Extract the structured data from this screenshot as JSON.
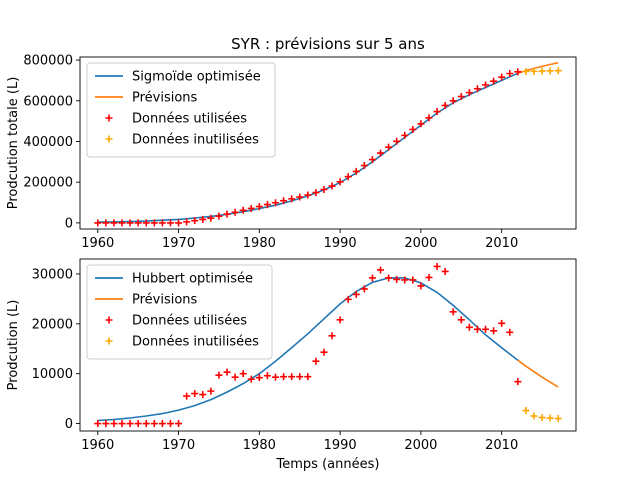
{
  "chart_data": [
    {
      "type": "line",
      "title": "SYR : prévisions sur 5 ans",
      "xlabel": "",
      "ylabel": "Prodcution totale (L)",
      "xlim": [
        1957.8,
        2019.2
      ],
      "ylim": [
        -30000,
        815000
      ],
      "xticks": [
        1960,
        1970,
        1980,
        1990,
        2000,
        2010
      ],
      "yticks": [
        0,
        200000,
        400000,
        600000,
        800000
      ],
      "legend_position": "upper-left",
      "grid": false,
      "series": [
        {
          "name": "Sigmoïde optimisée",
          "kind": "line",
          "color": "#1f77b4",
          "x": [
            1960,
            1962,
            1964,
            1966,
            1968,
            1970,
            1972,
            1974,
            1976,
            1978,
            1980,
            1982,
            1984,
            1986,
            1988,
            1990,
            1992,
            1994,
            1996,
            1998,
            2000,
            2002,
            2004,
            2006,
            2008,
            2010,
            2012
          ],
          "y": [
            4000,
            5000,
            7000,
            9000,
            13000,
            17000,
            24000,
            32000,
            42000,
            55000,
            70000,
            87000,
            108000,
            132000,
            162000,
            198000,
            245000,
            300000,
            360000,
            420000,
            480000,
            540000,
            590000,
            630000,
            665000,
            700000,
            735000
          ]
        },
        {
          "name": "Prévisions",
          "kind": "line",
          "color": "#ff7f0e",
          "x": [
            2012,
            2013,
            2014,
            2015,
            2016,
            2017
          ],
          "y": [
            735000,
            748000,
            759000,
            769000,
            778000,
            787000
          ]
        },
        {
          "name": "Données utilisées",
          "kind": "scatter",
          "marker": "plus",
          "color": "#ff0000",
          "x": [
            1960,
            1961,
            1962,
            1963,
            1964,
            1965,
            1966,
            1967,
            1968,
            1969,
            1970,
            1971,
            1972,
            1973,
            1974,
            1975,
            1976,
            1977,
            1978,
            1979,
            1980,
            1981,
            1982,
            1983,
            1984,
            1985,
            1986,
            1987,
            1988,
            1989,
            1990,
            1991,
            1992,
            1993,
            1994,
            1995,
            1996,
            1997,
            1998,
            1999,
            2000,
            2001,
            2002,
            2003,
            2004,
            2005,
            2006,
            2007,
            2008,
            2009,
            2010,
            2011,
            2012
          ],
          "y": [
            0,
            0,
            0,
            0,
            0,
            0,
            0,
            0,
            0,
            0,
            0,
            5000,
            11000,
            17000,
            23000,
            33000,
            43000,
            52000,
            62000,
            71000,
            80000,
            90000,
            99000,
            109000,
            118000,
            127000,
            137000,
            149000,
            164000,
            181000,
            202000,
            227000,
            253000,
            282000,
            311000,
            343000,
            372000,
            401000,
            430000,
            459000,
            487000,
            516000,
            547000,
            577000,
            600000,
            621000,
            640000,
            659000,
            678000,
            696000,
            716000,
            734000,
            742000
          ]
        },
        {
          "name": "Données inutilisées",
          "kind": "scatter",
          "marker": "plus",
          "color": "#ffa500",
          "x": [
            2013,
            2014,
            2015,
            2016,
            2017
          ],
          "y": [
            744000,
            745000,
            746000,
            747000,
            748000
          ]
        }
      ]
    },
    {
      "type": "line",
      "title": "",
      "xlabel": "Temps (années)",
      "ylabel": "Prodcution (L)",
      "xlim": [
        1957.8,
        2019.2
      ],
      "ylim": [
        -1500,
        33000
      ],
      "xticks": [
        1960,
        1970,
        1980,
        1990,
        2000,
        2010
      ],
      "yticks": [
        0,
        10000,
        20000,
        30000
      ],
      "legend_position": "upper-left",
      "grid": false,
      "series": [
        {
          "name": "Hubbert optimisée",
          "kind": "line",
          "color": "#1f77b4",
          "x": [
            1960,
            1962,
            1964,
            1966,
            1968,
            1970,
            1972,
            1974,
            1976,
            1978,
            1980,
            1982,
            1984,
            1986,
            1988,
            1990,
            1992,
            1994,
            1996,
            1998,
            2000,
            2002,
            2004,
            2006,
            2008,
            2010,
            2012
          ],
          "y": [
            600,
            800,
            1100,
            1500,
            2000,
            2700,
            3600,
            4800,
            6300,
            8000,
            10000,
            12500,
            15200,
            18000,
            21000,
            24000,
            26500,
            28300,
            29200,
            29200,
            28200,
            26300,
            23700,
            20800,
            17800,
            15200,
            12700
          ]
        },
        {
          "name": "Prévisions",
          "kind": "line",
          "color": "#ff7f0e",
          "x": [
            2012,
            2013,
            2014,
            2015,
            2016,
            2017
          ],
          "y": [
            12700,
            11500,
            10400,
            9300,
            8300,
            7300
          ]
        },
        {
          "name": "Données utilisées",
          "kind": "scatter",
          "marker": "plus",
          "color": "#ff0000",
          "x": [
            1960,
            1961,
            1962,
            1963,
            1964,
            1965,
            1966,
            1967,
            1968,
            1969,
            1970,
            1971,
            1972,
            1973,
            1974,
            1975,
            1976,
            1977,
            1978,
            1979,
            1980,
            1981,
            1982,
            1983,
            1984,
            1985,
            1986,
            1987,
            1988,
            1989,
            1990,
            1991,
            1992,
            1993,
            1994,
            1995,
            1996,
            1997,
            1998,
            1999,
            2000,
            2001,
            2002,
            2003,
            2004,
            2005,
            2006,
            2007,
            2008,
            2009,
            2010,
            2011,
            2012
          ],
          "y": [
            0,
            0,
            0,
            0,
            0,
            0,
            0,
            0,
            0,
            0,
            0,
            5500,
            6000,
            5800,
            6500,
            9700,
            10300,
            9300,
            10000,
            8900,
            9200,
            9600,
            9300,
            9400,
            9400,
            9400,
            9400,
            12500,
            14300,
            17600,
            20800,
            24900,
            25900,
            27000,
            29200,
            30800,
            29200,
            28900,
            28800,
            28800,
            27600,
            29300,
            31500,
            30500,
            22400,
            20800,
            19300,
            18900,
            18900,
            18600,
            20100,
            18300,
            8400
          ]
        },
        {
          "name": "Données inutilisées",
          "kind": "scatter",
          "marker": "plus",
          "color": "#ffa500",
          "x": [
            2013,
            2014,
            2015,
            2016,
            2017
          ],
          "y": [
            2600,
            1500,
            1200,
            1100,
            1000
          ]
        }
      ]
    }
  ]
}
